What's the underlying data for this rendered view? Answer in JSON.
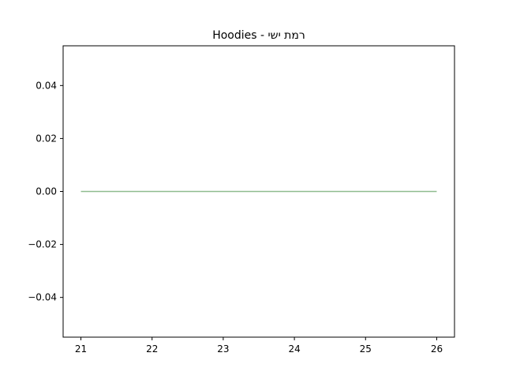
{
  "chart_data": {
    "type": "line",
    "title": "Hoodies - רמת ישי",
    "xlabel": "",
    "ylabel": "",
    "xlim": [
      20.75,
      26.25
    ],
    "ylim": [
      -0.055,
      0.055
    ],
    "xticks": [
      21,
      22,
      23,
      24,
      25,
      26
    ],
    "xtick_labels": [
      "21",
      "22",
      "23",
      "24",
      "25",
      "26"
    ],
    "yticks": [
      -0.04,
      -0.02,
      0.0,
      0.02,
      0.04
    ],
    "ytick_labels": [
      "−0.04",
      "−0.02",
      "0.00",
      "0.02",
      "0.04"
    ],
    "grid": false,
    "legend": "none",
    "series": [
      {
        "color": "#8fbc8f",
        "x": [
          21,
          22,
          23,
          24,
          25,
          26
        ],
        "y": [
          0,
          0,
          0,
          0,
          0,
          0
        ]
      }
    ]
  }
}
